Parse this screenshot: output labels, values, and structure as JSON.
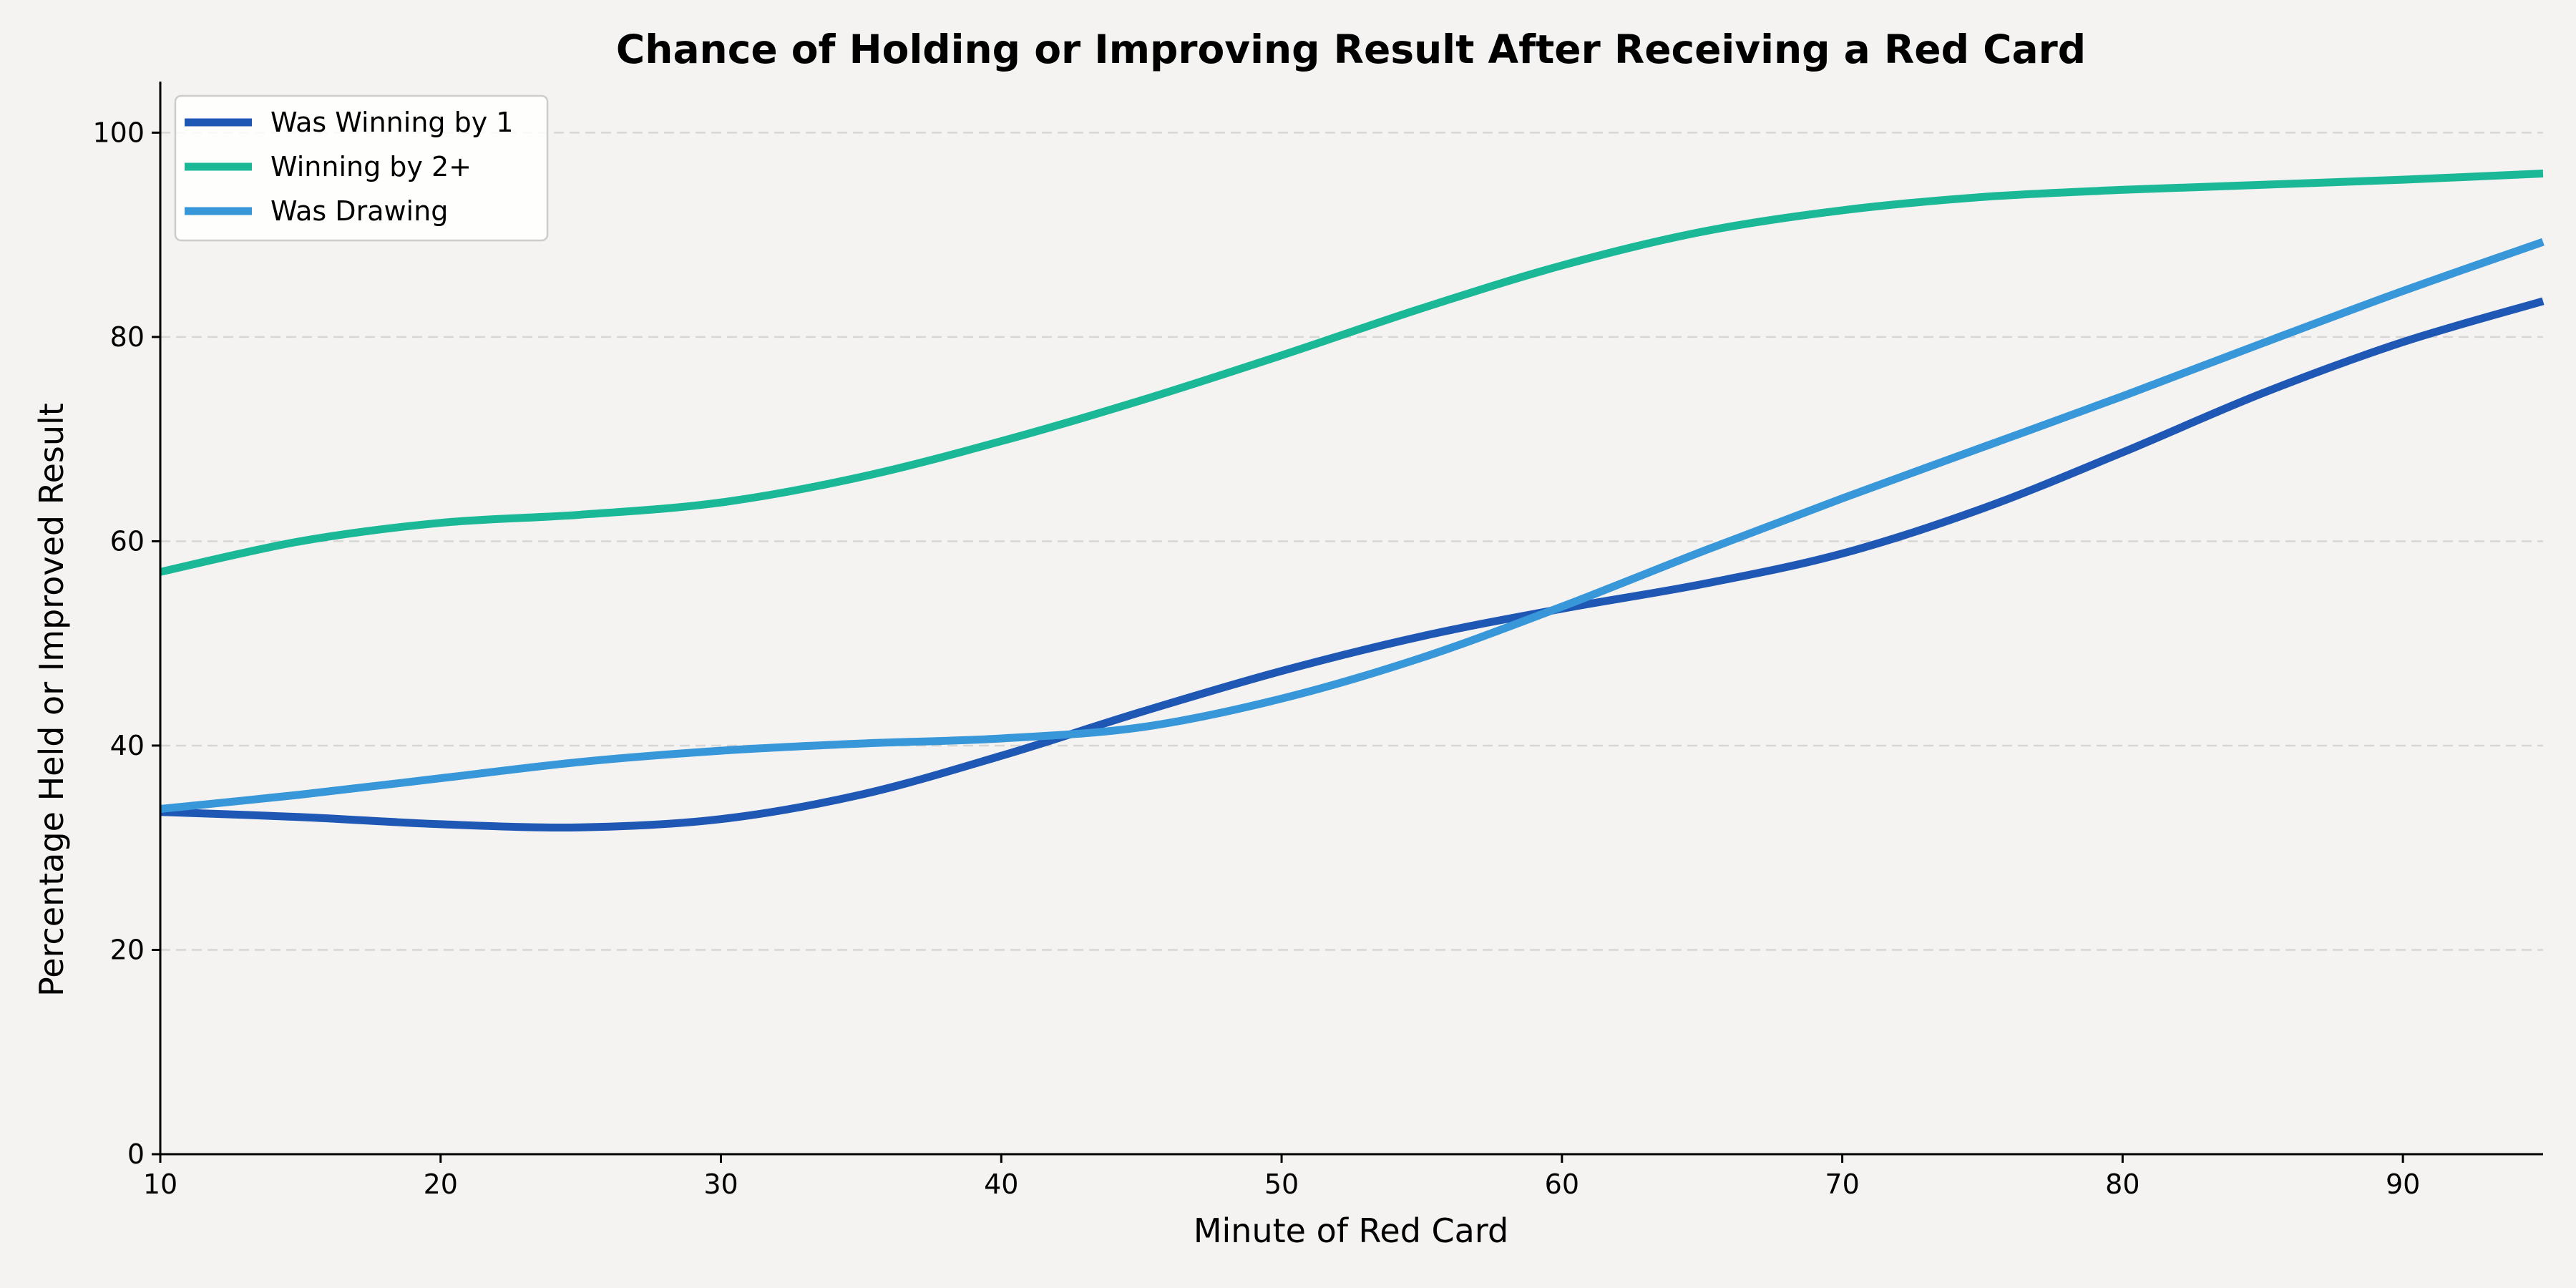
{
  "chart_data": {
    "type": "line",
    "title": "Chance of Holding or Improving Result After Receiving a Red Card",
    "xlabel": "Minute of Red Card",
    "ylabel": "Percentage Held or Improved Result",
    "xlim": [
      10,
      95
    ],
    "ylim": [
      0,
      105
    ],
    "xticks": [
      10,
      20,
      30,
      40,
      50,
      60,
      70,
      80,
      90
    ],
    "yticks": [
      0,
      20,
      40,
      60,
      80,
      100
    ],
    "grid": "y-dashed",
    "legend_position": "top-left",
    "x": [
      10,
      15,
      20,
      25,
      30,
      35,
      40,
      45,
      50,
      55,
      60,
      65,
      70,
      75,
      80,
      85,
      90,
      95
    ],
    "series": [
      {
        "name": "Was Winning by 1",
        "color": "#1f57b5",
        "values": [
          33.5,
          33.0,
          32.3,
          32.0,
          32.8,
          35.2,
          39.0,
          43.3,
          47.3,
          50.7,
          53.4,
          55.8,
          58.8,
          63.2,
          68.7,
          74.5,
          79.5,
          83.5
        ]
      },
      {
        "name": "Winning by 2+",
        "color": "#1bb897",
        "values": [
          57.0,
          60.0,
          61.8,
          62.6,
          63.8,
          66.3,
          69.8,
          73.8,
          78.2,
          82.8,
          87.0,
          90.3,
          92.4,
          93.7,
          94.4,
          94.9,
          95.4,
          96.0
        ]
      },
      {
        "name": "Was Drawing",
        "color": "#3797d9",
        "values": [
          33.8,
          35.2,
          36.8,
          38.4,
          39.5,
          40.2,
          40.7,
          41.8,
          44.6,
          48.6,
          53.6,
          59.0,
          64.2,
          69.2,
          74.2,
          79.4,
          84.5,
          89.3
        ]
      }
    ]
  }
}
